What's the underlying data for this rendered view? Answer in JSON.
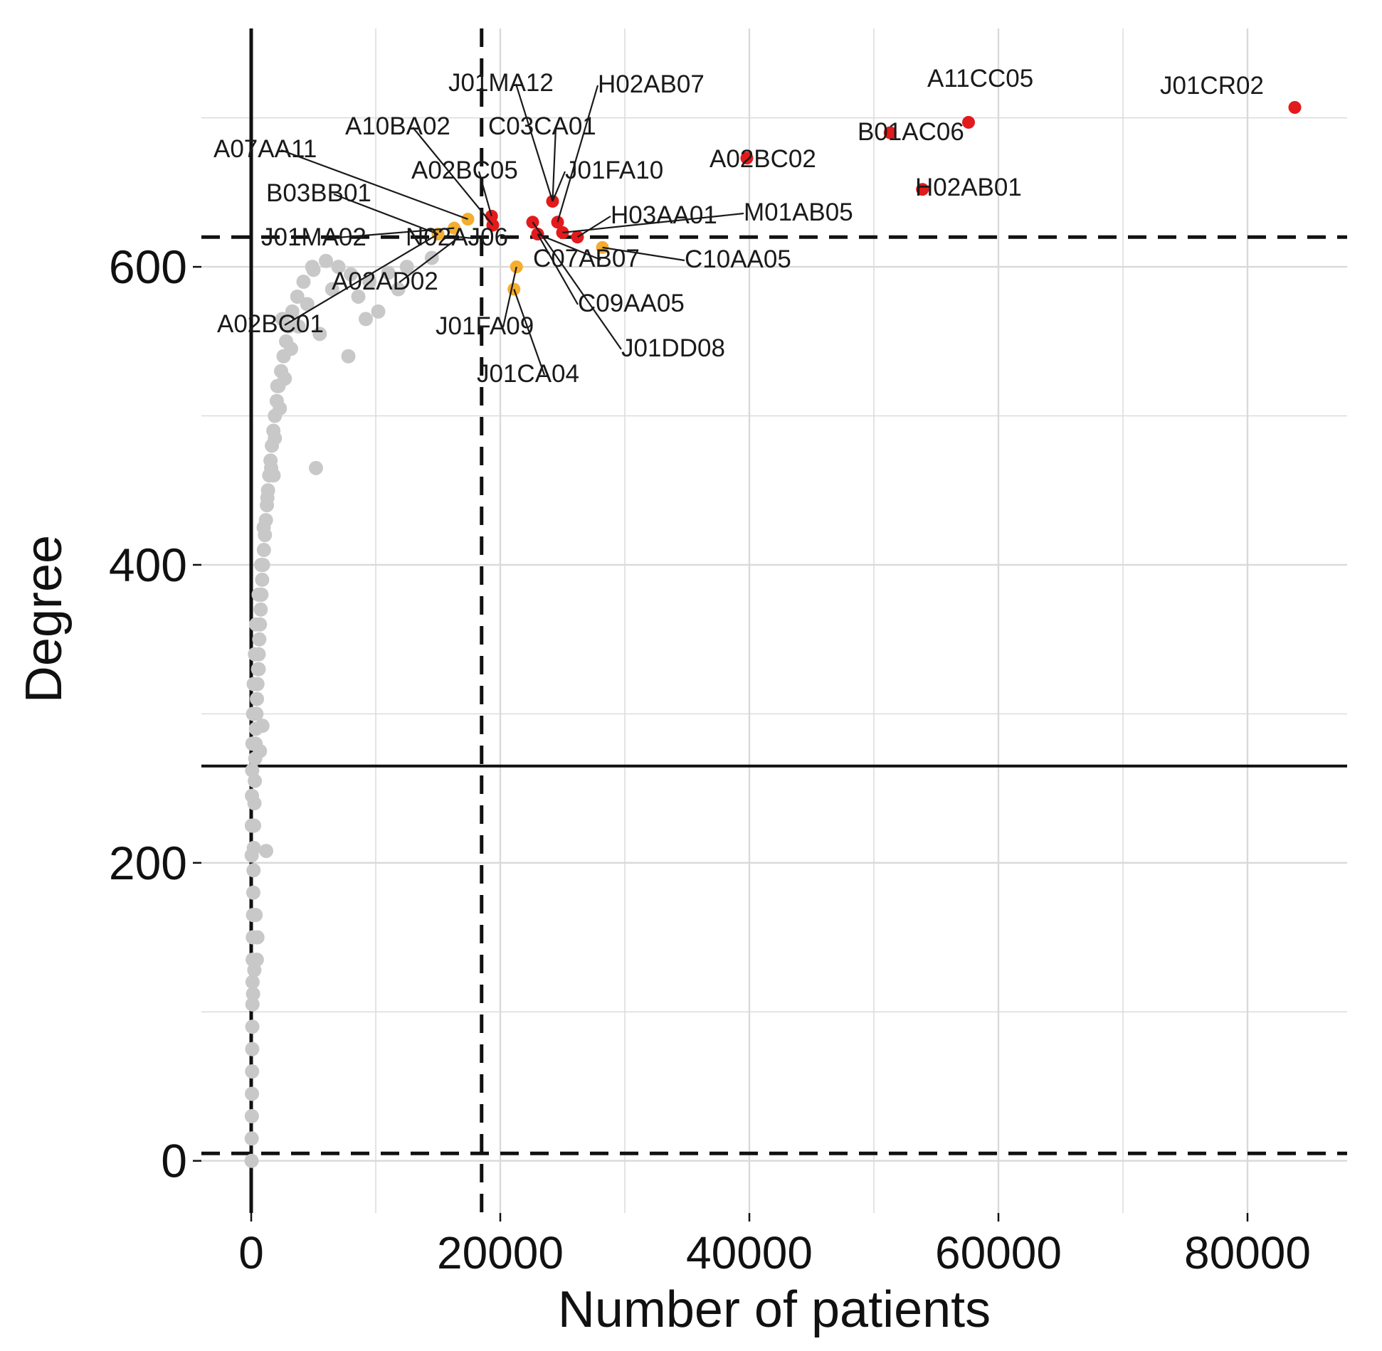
{
  "chart_data": {
    "type": "scatter",
    "title": "",
    "xlabel": "Number of patients",
    "ylabel": "Degree",
    "xlim": [
      -4000,
      88000
    ],
    "ylim": [
      -35,
      760
    ],
    "x_ticks": [
      0,
      20000,
      40000,
      60000,
      80000
    ],
    "x_tick_labels": [
      "0",
      "20000",
      "40000",
      "60000",
      "80000"
    ],
    "y_ticks": [
      0,
      200,
      400,
      600
    ],
    "y_tick_labels": [
      "0",
      "200",
      "400",
      "600"
    ],
    "grid": true,
    "reference_lines": {
      "horizontal_dashed": [
        5,
        620
      ],
      "horizontal_solid": [
        265
      ],
      "vertical_dashed": [
        18500
      ],
      "vertical_solid": [
        0
      ]
    },
    "colors": {
      "background_points": "#c8c8c8",
      "highlight_red": "#e21a1c",
      "highlight_orange": "#f4ad2e",
      "grid": "#d9d9d9",
      "lines": "#111111"
    },
    "series": [
      {
        "color_key": "background_points",
        "points": [
          [
            30,
            0
          ],
          [
            40,
            15
          ],
          [
            50,
            30
          ],
          [
            60,
            45
          ],
          [
            70,
            60
          ],
          [
            80,
            75
          ],
          [
            90,
            90
          ],
          [
            100,
            105
          ],
          [
            110,
            120
          ],
          [
            120,
            135
          ],
          [
            130,
            150
          ],
          [
            150,
            165
          ],
          [
            170,
            180
          ],
          [
            190,
            195
          ],
          [
            210,
            210
          ],
          [
            230,
            225
          ],
          [
            260,
            240
          ],
          [
            290,
            255
          ],
          [
            320,
            270
          ],
          [
            350,
            280
          ],
          [
            380,
            290
          ],
          [
            420,
            300
          ],
          [
            460,
            310
          ],
          [
            500,
            320
          ],
          [
            550,
            330
          ],
          [
            600,
            340
          ],
          [
            650,
            350
          ],
          [
            700,
            360
          ],
          [
            760,
            370
          ],
          [
            820,
            380
          ],
          [
            880,
            390
          ],
          [
            950,
            400
          ],
          [
            1020,
            410
          ],
          [
            1100,
            420
          ],
          [
            1180,
            430
          ],
          [
            1260,
            440
          ],
          [
            1350,
            450
          ],
          [
            1450,
            460
          ],
          [
            1550,
            470
          ],
          [
            1660,
            480
          ],
          [
            1780,
            490
          ],
          [
            1900,
            500
          ],
          [
            2050,
            510
          ],
          [
            2200,
            520
          ],
          [
            2400,
            530
          ],
          [
            2600,
            540
          ],
          [
            2800,
            550
          ],
          [
            3000,
            560
          ],
          [
            3300,
            570
          ],
          [
            3700,
            580
          ],
          [
            4200,
            590
          ],
          [
            5000,
            598
          ],
          [
            6000,
            604
          ],
          [
            7000,
            600
          ],
          [
            8000,
            595
          ],
          [
            9500,
            590
          ],
          [
            11000,
            596
          ],
          [
            12500,
            600
          ],
          [
            14500,
            606
          ],
          [
            5500,
            555
          ],
          [
            7800,
            540
          ],
          [
            9200,
            565
          ],
          [
            3200,
            545
          ],
          [
            2700,
            525
          ],
          [
            2300,
            505
          ],
          [
            1900,
            485
          ],
          [
            1600,
            465
          ],
          [
            1300,
            445
          ],
          [
            1000,
            425
          ],
          [
            800,
            400
          ],
          [
            600,
            380
          ],
          [
            400,
            360
          ],
          [
            300,
            340
          ],
          [
            200,
            320
          ],
          [
            150,
            300
          ],
          [
            100,
            280
          ],
          [
            80,
            262
          ],
          [
            60,
            245
          ],
          [
            50,
            225
          ],
          [
            40,
            205
          ],
          [
            1200,
            208
          ],
          [
            700,
            275
          ],
          [
            900,
            292
          ],
          [
            500,
            150
          ],
          [
            450,
            135
          ],
          [
            350,
            165
          ],
          [
            250,
            128
          ],
          [
            150,
            112
          ],
          [
            600,
            330
          ],
          [
            1800,
            460
          ],
          [
            2100,
            520
          ],
          [
            2500,
            565
          ],
          [
            4500,
            575
          ],
          [
            6500,
            585
          ],
          [
            5200,
            465
          ],
          [
            3800,
            560
          ],
          [
            4900,
            600
          ],
          [
            8600,
            580
          ],
          [
            10200,
            570
          ],
          [
            11800,
            585
          ]
        ]
      },
      {
        "color_key": "highlight_orange",
        "points": [
          [
            15000,
            622
          ],
          [
            16300,
            626
          ],
          [
            17400,
            632
          ],
          [
            21300,
            600
          ],
          [
            21100,
            585
          ],
          [
            28200,
            613
          ]
        ]
      },
      {
        "color_key": "highlight_red",
        "points": [
          [
            19300,
            634
          ],
          [
            19400,
            628
          ],
          [
            22600,
            630
          ],
          [
            23000,
            622
          ],
          [
            24200,
            644
          ],
          [
            24600,
            630
          ],
          [
            25000,
            623
          ],
          [
            26200,
            620
          ],
          [
            39800,
            673
          ],
          [
            51300,
            690
          ],
          [
            53900,
            652
          ],
          [
            57600,
            697
          ],
          [
            83800,
            707
          ]
        ]
      }
    ],
    "annotations": [
      {
        "label": "J01CR02",
        "x": 83800,
        "y": 707
      },
      {
        "label": "A11CC05",
        "x": 57600,
        "y": 697
      },
      {
        "label": "B01AC06",
        "x": 51300,
        "y": 690
      },
      {
        "label": "H02AB01",
        "x": 53900,
        "y": 652
      },
      {
        "label": "A02BC02",
        "x": 39800,
        "y": 673
      },
      {
        "label": "J01MA12",
        "x": 24200,
        "y": 644
      },
      {
        "label": "H02AB07",
        "x": 24600,
        "y": 630
      },
      {
        "label": "C03CA01",
        "x": 24200,
        "y": 644
      },
      {
        "label": "J01FA10",
        "x": 24200,
        "y": 644
      },
      {
        "label": "A10BA02",
        "x": 19400,
        "y": 628
      },
      {
        "label": "A07AA11",
        "x": 17400,
        "y": 632
      },
      {
        "label": "A02BC05",
        "x": 19300,
        "y": 634
      },
      {
        "label": "B03BB01",
        "x": 15000,
        "y": 622
      },
      {
        "label": "J01MA02",
        "x": 16300,
        "y": 626
      },
      {
        "label": "N02AJ06",
        "x": 16700,
        "y": 620
      },
      {
        "label": "H03AA01",
        "x": 26200,
        "y": 620
      },
      {
        "label": "M01AB05",
        "x": 25000,
        "y": 623
      },
      {
        "label": "C07AB07",
        "x": 23000,
        "y": 622
      },
      {
        "label": "C10AA05",
        "x": 28200,
        "y": 613
      },
      {
        "label": "A02AD02",
        "x": 16700,
        "y": 620
      },
      {
        "label": "C09AA05",
        "x": 23000,
        "y": 622
      },
      {
        "label": "J01FA09",
        "x": 21300,
        "y": 600
      },
      {
        "label": "J01DD08",
        "x": 22600,
        "y": 630
      },
      {
        "label": "J01CA04",
        "x": 21100,
        "y": 585
      },
      {
        "label": "A02BC01",
        "x": 15000,
        "y": 622
      }
    ]
  }
}
